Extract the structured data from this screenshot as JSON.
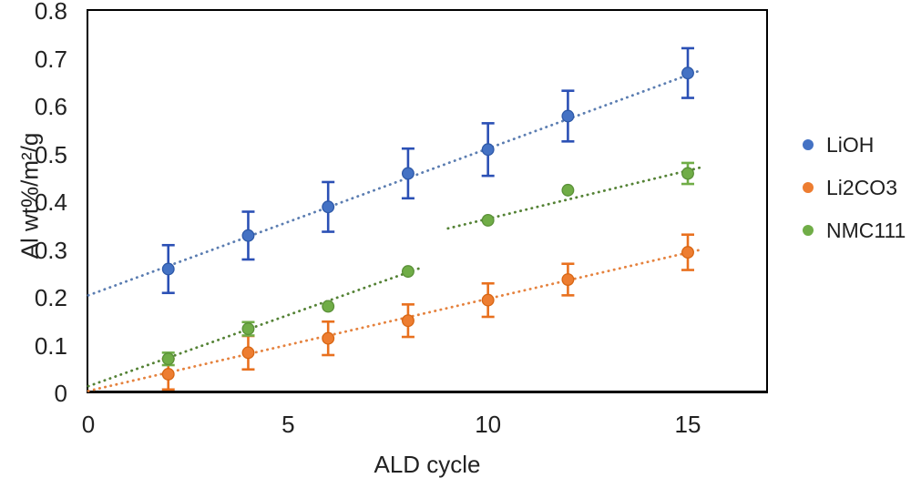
{
  "chart_data": {
    "type": "scatter",
    "title": "",
    "xlabel": "ALD cycle",
    "ylabel": "Al wt%/m²/g",
    "xlim": [
      0,
      17
    ],
    "ylim": [
      0,
      0.8
    ],
    "grid": false,
    "legend_position": "right",
    "x_ticks": [
      {
        "value": 0,
        "label": "0"
      },
      {
        "value": 5,
        "label": "5"
      },
      {
        "value": 10,
        "label": "10"
      },
      {
        "value": 15,
        "label": "15"
      }
    ],
    "y_ticks": [
      {
        "value": 0,
        "label": "0"
      },
      {
        "value": 0.1,
        "label": "0.1"
      },
      {
        "value": 0.2,
        "label": "0.2"
      },
      {
        "value": 0.3,
        "label": "0.3"
      },
      {
        "value": 0.4,
        "label": "0.4"
      },
      {
        "value": 0.5,
        "label": "0.5"
      },
      {
        "value": 0.6,
        "label": "0.6"
      },
      {
        "value": 0.7,
        "label": "0.7"
      },
      {
        "value": 0.8,
        "label": "0.8"
      }
    ],
    "x": [
      2,
      4,
      6,
      8,
      10,
      12,
      15
    ],
    "series": [
      {
        "name": "LiOH",
        "marker_color": "#4472C4",
        "marker_edge": "#2E59A8",
        "error_color": "#2B50B5",
        "trend_color": "#5B7DB1",
        "trend_style": "dotted",
        "values": [
          0.26,
          0.33,
          0.39,
          0.46,
          0.51,
          0.58,
          0.67
        ],
        "errors": [
          0.05,
          0.05,
          0.052,
          0.052,
          0.055,
          0.053,
          0.052
        ],
        "trendlines": [
          {
            "x1": 0,
            "y1": 0.205,
            "x2": 15.3,
            "y2": 0.675
          }
        ]
      },
      {
        "name": "Li2CO3",
        "marker_color": "#ED7D31",
        "marker_edge": "#D86613",
        "error_color": "#E8701E",
        "trend_color": "#E5823E",
        "trend_style": "dotted",
        "values": [
          0.04,
          0.085,
          0.115,
          0.152,
          0.195,
          0.238,
          0.295
        ],
        "errors": [
          0.032,
          0.035,
          0.035,
          0.034,
          0.035,
          0.033,
          0.037
        ],
        "trendlines": [
          {
            "x1": 0,
            "y1": 0.005,
            "x2": 15.3,
            "y2": 0.3
          }
        ]
      },
      {
        "name": "NMC111",
        "marker_color": "#70AD47",
        "marker_edge": "#5A9038",
        "error_color": "#70AD47",
        "trend_color": "#548235",
        "trend_style": "dotted",
        "values": [
          0.072,
          0.135,
          0.182,
          0.255,
          0.362,
          0.425,
          0.46
        ],
        "errors": [
          0.013,
          0.014,
          0,
          0,
          0,
          0,
          0.022
        ],
        "trendlines": [
          {
            "x1": 0,
            "y1": 0.015,
            "x2": 8.3,
            "y2": 0.262
          },
          {
            "x1": 9.0,
            "y1": 0.345,
            "x2": 15.3,
            "y2": 0.472
          }
        ]
      }
    ]
  }
}
